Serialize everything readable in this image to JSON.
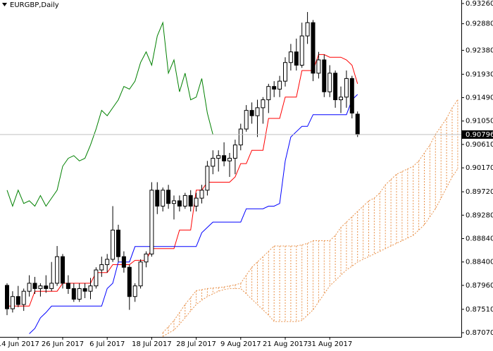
{
  "chart_data": {
    "type": "candlestick",
    "title": "EURGBP,Daily",
    "categories": [
      null,
      null,
      "14 Jun 2017",
      null,
      null,
      null,
      null,
      null,
      null,
      null,
      "26 Jun 2017",
      null,
      null,
      null,
      null,
      null,
      null,
      null,
      "6 Jul 2017",
      null,
      null,
      null,
      null,
      null,
      null,
      null,
      "18 Jul 2017",
      null,
      null,
      null,
      null,
      null,
      null,
      null,
      "28 Jul 2017",
      null,
      null,
      null,
      null,
      null,
      null,
      null,
      "9 Aug 2017",
      null,
      null,
      null,
      null,
      null,
      null,
      null,
      "21 Aug 2017",
      null,
      null,
      null,
      null,
      null,
      null,
      null,
      "31 Aug 2017",
      null,
      null,
      null,
      null,
      null,
      null,
      null,
      null,
      null,
      null,
      null,
      null,
      null,
      null,
      null,
      null,
      null,
      null,
      null,
      null,
      null,
      null,
      null
    ],
    "candles": {
      "open": [
        0.8796,
        0.8752,
        0.8775,
        0.876,
        0.8785,
        0.88,
        0.879,
        0.8795,
        0.879,
        0.88,
        0.885,
        0.88,
        0.879,
        0.877,
        0.879,
        0.8785,
        0.8795,
        0.8825,
        0.8835,
        0.8845,
        0.89,
        0.885,
        0.883,
        0.8775,
        0.8795,
        0.884,
        0.8855,
        0.8975,
        0.8945,
        0.8975,
        0.895,
        0.8955,
        0.8945,
        0.8965,
        0.8945,
        0.896,
        0.8975,
        0.902,
        0.9035,
        0.904,
        0.903,
        0.9035,
        0.906,
        0.909,
        0.9125,
        0.9115,
        0.913,
        0.9145,
        0.917,
        0.9165,
        0.918,
        0.9215,
        0.9235,
        0.921,
        0.9265,
        0.929,
        0.9195,
        0.922,
        0.916,
        0.9195,
        0.9145,
        0.915,
        0.9185,
        0.9118,
        null,
        null,
        null,
        null,
        null,
        null,
        null,
        null,
        null,
        null,
        null,
        null,
        null,
        null,
        null,
        null,
        null,
        null
      ],
      "high": [
        0.88,
        0.8785,
        0.8795,
        0.879,
        0.8815,
        0.8812,
        0.88,
        0.8815,
        0.884,
        0.887,
        0.8855,
        0.8815,
        0.88,
        0.88,
        0.88,
        0.881,
        0.883,
        0.885,
        0.8855,
        0.8945,
        0.891,
        0.886,
        0.8835,
        0.88,
        0.8845,
        0.886,
        0.899,
        0.899,
        0.898,
        0.8985,
        0.8965,
        0.8965,
        0.897,
        0.8975,
        0.897,
        0.8985,
        0.903,
        0.905,
        0.905,
        0.9065,
        0.9045,
        0.907,
        0.91,
        0.9135,
        0.914,
        0.9145,
        0.915,
        0.9175,
        0.918,
        0.919,
        0.9225,
        0.925,
        0.926,
        0.929,
        0.931,
        0.9295,
        0.9235,
        0.923,
        0.921,
        0.92,
        0.917,
        0.92,
        0.919,
        0.9123,
        null,
        null,
        null,
        null,
        null,
        null,
        null,
        null,
        null,
        null,
        null,
        null,
        null,
        null,
        null,
        null,
        null,
        null
      ],
      "low": [
        0.874,
        0.8745,
        0.8755,
        0.8748,
        0.8775,
        0.878,
        0.8775,
        0.8782,
        0.8785,
        0.8795,
        0.879,
        0.878,
        0.8765,
        0.8765,
        0.8772,
        0.877,
        0.879,
        0.8812,
        0.882,
        0.884,
        0.884,
        0.882,
        0.875,
        0.8765,
        0.879,
        0.883,
        0.885,
        0.893,
        0.8935,
        0.894,
        0.892,
        0.8935,
        0.894,
        0.8935,
        0.8935,
        0.895,
        0.8965,
        0.9005,
        0.901,
        0.902,
        0.9,
        0.9005,
        0.905,
        0.9085,
        0.91,
        0.9075,
        0.91,
        0.912,
        0.915,
        0.915,
        0.917,
        0.92,
        0.92,
        0.9205,
        0.925,
        0.918,
        0.9185,
        0.915,
        0.915,
        0.913,
        0.912,
        0.913,
        0.911,
        0.9075,
        null,
        null,
        null,
        null,
        null,
        null,
        null,
        null,
        null,
        null,
        null,
        null,
        null,
        null,
        null,
        null,
        null,
        null
      ],
      "close": [
        0.8752,
        0.8775,
        0.876,
        0.8785,
        0.88,
        0.879,
        0.8795,
        0.879,
        0.88,
        0.885,
        0.88,
        0.879,
        0.877,
        0.879,
        0.8785,
        0.8795,
        0.8825,
        0.8835,
        0.8845,
        0.89,
        0.885,
        0.883,
        0.8775,
        0.8795,
        0.884,
        0.8855,
        0.8975,
        0.8945,
        0.8975,
        0.895,
        0.8955,
        0.8945,
        0.8965,
        0.8945,
        0.896,
        0.8975,
        0.902,
        0.9035,
        0.904,
        0.903,
        0.9035,
        0.906,
        0.909,
        0.9125,
        0.9115,
        0.913,
        0.9145,
        0.917,
        0.9165,
        0.918,
        0.9215,
        0.9235,
        0.921,
        0.9265,
        0.929,
        0.9195,
        0.922,
        0.916,
        0.9195,
        0.9145,
        0.915,
        0.9185,
        0.912,
        0.90796,
        null,
        null,
        null,
        null,
        null,
        null,
        null,
        null,
        null,
        null,
        null,
        null,
        null,
        null,
        null,
        null,
        null,
        null
      ],
      "up_color": "#ffffff",
      "down_color": "#000000",
      "edge_color": "#000000"
    },
    "lines": [
      {
        "color": "#ff0000",
        "values": [
          0.8757,
          0.8757,
          0.8757,
          0.8757,
          0.8757,
          0.8785,
          0.8785,
          0.8785,
          0.8785,
          0.8785,
          0.88,
          0.88,
          0.88,
          0.88,
          0.88,
          0.88,
          0.882,
          0.882,
          0.882,
          0.8835,
          0.8835,
          0.8835,
          0.8835,
          0.8843,
          0.8843,
          0.8843,
          0.8865,
          0.8865,
          0.8865,
          0.8865,
          0.8865,
          0.89,
          0.89,
          0.89,
          0.8975,
          0.8975,
          0.899,
          0.899,
          0.899,
          0.899,
          0.899,
          0.9,
          0.9025,
          0.9025,
          0.905,
          0.905,
          0.905,
          0.911,
          0.911,
          0.911,
          0.915,
          0.915,
          0.915,
          0.92,
          0.92,
          0.92,
          0.923,
          0.923,
          0.9225,
          0.9225,
          0.9225,
          0.922,
          0.921,
          0.9175,
          null,
          null,
          null,
          null,
          null,
          null,
          null,
          null,
          null,
          null,
          null,
          null,
          null,
          null,
          null,
          null,
          null,
          null
        ]
      },
      {
        "color": "#0000ff",
        "values": [
          null,
          null,
          null,
          null,
          0.8705,
          0.8715,
          0.8735,
          0.8745,
          0.8757,
          0.8757,
          0.8757,
          0.8757,
          0.8757,
          0.8757,
          0.8757,
          0.8757,
          0.8757,
          0.8757,
          0.879,
          0.88,
          0.884,
          0.884,
          0.884,
          0.8869,
          0.8869,
          0.8869,
          0.8869,
          0.8869,
          0.8869,
          0.8869,
          0.8869,
          0.8869,
          0.8869,
          0.8869,
          0.8869,
          0.8895,
          0.8905,
          0.8915,
          0.8915,
          0.8915,
          0.8915,
          0.8915,
          0.8915,
          0.894,
          0.894,
          0.894,
          0.894,
          0.8945,
          0.8945,
          0.895,
          0.903,
          0.9075,
          0.9085,
          0.9095,
          0.9095,
          0.9117,
          0.9117,
          0.9117,
          0.9117,
          0.9117,
          0.9117,
          0.9117,
          0.9145,
          0.9155,
          null,
          null,
          null,
          null,
          null,
          null,
          null,
          null,
          null,
          null,
          null,
          null,
          null,
          null,
          null,
          null,
          null,
          null
        ]
      },
      {
        "color": "#008000",
        "values": [
          0.8975,
          0.8945,
          0.8975,
          0.895,
          0.8955,
          0.8945,
          0.8965,
          0.8945,
          0.896,
          0.8975,
          0.902,
          0.9035,
          0.904,
          0.903,
          0.9035,
          0.906,
          0.909,
          0.9125,
          0.9115,
          0.913,
          0.9145,
          0.917,
          0.9165,
          0.918,
          0.9215,
          0.9235,
          0.921,
          0.9265,
          0.929,
          0.9195,
          0.922,
          0.916,
          0.9195,
          0.9145,
          0.915,
          0.9185,
          0.912,
          0.90796,
          null,
          null,
          null,
          null,
          null,
          null,
          null,
          null,
          null,
          null,
          null,
          null,
          null,
          null,
          null,
          null,
          null,
          null,
          null,
          null,
          null,
          null,
          null,
          null,
          null,
          null,
          null,
          null,
          null,
          null,
          null,
          null,
          null,
          null,
          null,
          null,
          null,
          null,
          null,
          null,
          null,
          null,
          null,
          null
        ]
      }
    ],
    "cloud": {
      "color": "#e8914a",
      "span_a": [
        null,
        null,
        null,
        null,
        null,
        null,
        null,
        null,
        null,
        null,
        null,
        null,
        null,
        null,
        null,
        null,
        null,
        null,
        null,
        null,
        null,
        null,
        null,
        null,
        null,
        null,
        null,
        null,
        0.8707,
        0.8718,
        0.873,
        0.8745,
        0.876,
        0.8773,
        0.8786,
        0.8788,
        0.879,
        0.8791,
        0.8792,
        0.8793,
        0.8795,
        0.8797,
        0.88,
        0.8815,
        0.883,
        0.884,
        0.885,
        0.886,
        0.887,
        0.887,
        0.887,
        0.887,
        0.887,
        0.8872,
        0.8875,
        0.888,
        0.888,
        0.888,
        0.888,
        0.889,
        0.8905,
        0.8915,
        0.8925,
        0.8935,
        0.8945,
        0.8955,
        0.896,
        0.897,
        0.8985,
        0.8995,
        0.9005,
        0.901,
        0.9015,
        0.902,
        0.903,
        0.9045,
        0.906,
        0.908,
        0.9095,
        0.911,
        0.913,
        0.9145
      ],
      "span_b": [
        null,
        null,
        null,
        null,
        null,
        null,
        null,
        null,
        null,
        null,
        null,
        null,
        null,
        null,
        null,
        null,
        null,
        null,
        null,
        null,
        null,
        null,
        null,
        null,
        null,
        null,
        null,
        null,
        0.87,
        0.8706,
        0.8712,
        0.8723,
        0.8735,
        0.8748,
        0.876,
        0.8768,
        0.8775,
        0.878,
        0.8785,
        0.8788,
        0.879,
        0.879,
        0.879,
        0.878,
        0.877,
        0.876,
        0.875,
        0.874,
        0.8728,
        0.8728,
        0.8728,
        0.8728,
        0.8728,
        0.873,
        0.874,
        0.875,
        0.8765,
        0.878,
        0.8795,
        0.8805,
        0.8815,
        0.8825,
        0.8832,
        0.884,
        0.8845,
        0.885,
        0.8855,
        0.886,
        0.8865,
        0.887,
        0.8875,
        0.888,
        0.8885,
        0.889,
        0.89,
        0.891,
        0.8925,
        0.894,
        0.896,
        0.898,
        0.9,
        0.9015
      ]
    },
    "ylim": [
      0.86991,
      0.93326
    ],
    "yticks": [
      {
        "value": 0.9326,
        "label": "0.93260"
      },
      {
        "value": 0.9288,
        "label": "0.92880"
      },
      {
        "value": 0.9238,
        "label": "0.92380"
      },
      {
        "value": 0.9193,
        "label": "0.91930"
      },
      {
        "value": 0.9149,
        "label": "0.91490"
      },
      {
        "value": 0.9105,
        "label": "0.91050"
      },
      {
        "value": 0.9061,
        "label": "0.90610"
      },
      {
        "value": 0.9017,
        "label": "0.90170"
      },
      {
        "value": 0.8972,
        "label": "0.89720"
      },
      {
        "value": 0.8928,
        "label": "0.89280"
      },
      {
        "value": 0.8884,
        "label": "0.88840"
      },
      {
        "value": 0.884,
        "label": "0.88400"
      },
      {
        "value": 0.8796,
        "label": "0.87960"
      },
      {
        "value": 0.8751,
        "label": "0.87510"
      },
      {
        "value": 0.8707,
        "label": "0.87070"
      }
    ],
    "current_price": {
      "value": 0.90796,
      "label": "0.90796"
    }
  }
}
